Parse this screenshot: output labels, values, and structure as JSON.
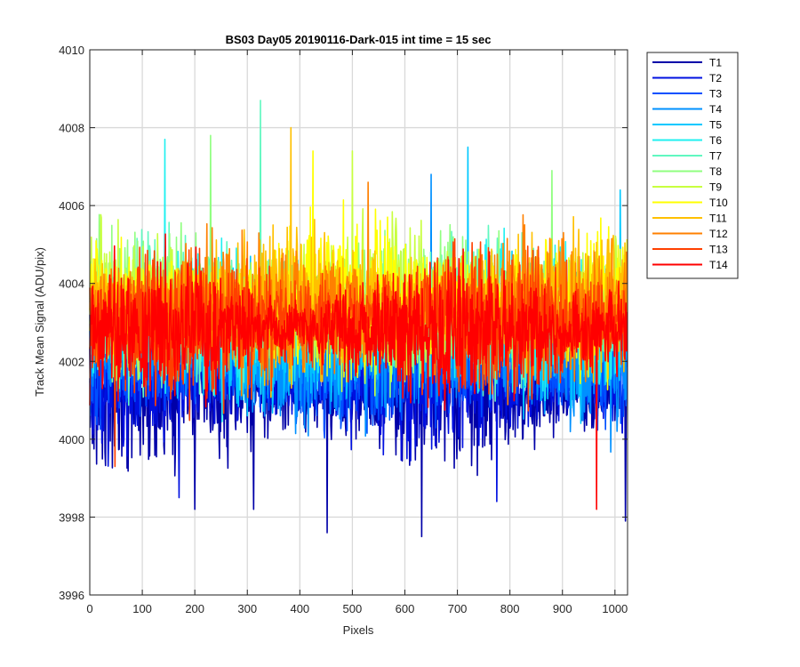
{
  "chart_data": {
    "type": "line",
    "title": "BS03 Day05 20190116-Dark-015 int time = 15 sec",
    "xlabel": "Pixels",
    "ylabel": "Track Mean Signal (ADU/pix)",
    "xlim": [
      0,
      1024
    ],
    "ylim": [
      3996,
      4010
    ],
    "xticks": [
      0,
      100,
      200,
      300,
      400,
      500,
      600,
      700,
      800,
      900,
      1000
    ],
    "yticks": [
      3996,
      3998,
      4000,
      4002,
      4004,
      4006,
      4008,
      4010
    ],
    "grid": true,
    "legend_position": "outside top-right",
    "series_summary_note": "",
    "series": [
      {
        "name": "T1",
        "color": "#0000a8",
        "mean": 4001.2,
        "spread": 1.2,
        "extremes": [
          [
            452,
            3997.6
          ],
          [
            632,
            3997.5
          ],
          [
            1020,
            3997.9
          ],
          [
            200,
            3998.2
          ],
          [
            312,
            3998.2
          ]
        ]
      },
      {
        "name": "T2",
        "color": "#0010e0",
        "mean": 4001.5,
        "spread": 1.1,
        "extremes": [
          [
            170,
            3998.5
          ],
          [
            775,
            3998.4
          ]
        ]
      },
      {
        "name": "T3",
        "color": "#0050ff",
        "mean": 4001.9,
        "spread": 1.1,
        "extremes": []
      },
      {
        "name": "T4",
        "color": "#0090ff",
        "mean": 4002.3,
        "spread": 1.2,
        "extremes": [
          [
            650,
            4006.8
          ]
        ]
      },
      {
        "name": "T5",
        "color": "#00c8ff",
        "mean": 4002.7,
        "spread": 1.2,
        "extremes": [
          [
            1010,
            4006.4
          ],
          [
            720,
            4007.5
          ]
        ]
      },
      {
        "name": "T6",
        "color": "#20f0f0",
        "mean": 4003.0,
        "spread": 1.2,
        "extremes": [
          [
            143,
            4007.7
          ]
        ]
      },
      {
        "name": "T7",
        "color": "#60f8c0",
        "mean": 4003.2,
        "spread": 1.2,
        "extremes": [
          [
            325,
            4008.7
          ]
        ]
      },
      {
        "name": "T8",
        "color": "#90ff80",
        "mean": 4003.4,
        "spread": 1.2,
        "extremes": [
          [
            230,
            4007.8
          ],
          [
            880,
            4006.9
          ]
        ]
      },
      {
        "name": "T9",
        "color": "#c8ff40",
        "mean": 4003.5,
        "spread": 1.2,
        "extremes": [
          [
            500,
            4007.4
          ]
        ]
      },
      {
        "name": "T10",
        "color": "#ffff00",
        "mean": 4003.6,
        "spread": 1.2,
        "extremes": [
          [
            425,
            4007.4
          ]
        ]
      },
      {
        "name": "T11",
        "color": "#ffc000",
        "mean": 4003.5,
        "spread": 1.2,
        "extremes": [
          [
            383,
            4008.0
          ]
        ]
      },
      {
        "name": "T12",
        "color": "#ff8000",
        "mean": 4003.3,
        "spread": 1.2,
        "extremes": [
          [
            530,
            4006.6
          ]
        ]
      },
      {
        "name": "T13",
        "color": "#ff4000",
        "mean": 4003.0,
        "spread": 1.2,
        "extremes": [
          [
            48,
            3999.3
          ]
        ]
      },
      {
        "name": "T14",
        "color": "#ff0000",
        "mean": 4002.8,
        "spread": 1.1,
        "extremes": [
          [
            965,
            3998.2
          ]
        ]
      }
    ]
  }
}
